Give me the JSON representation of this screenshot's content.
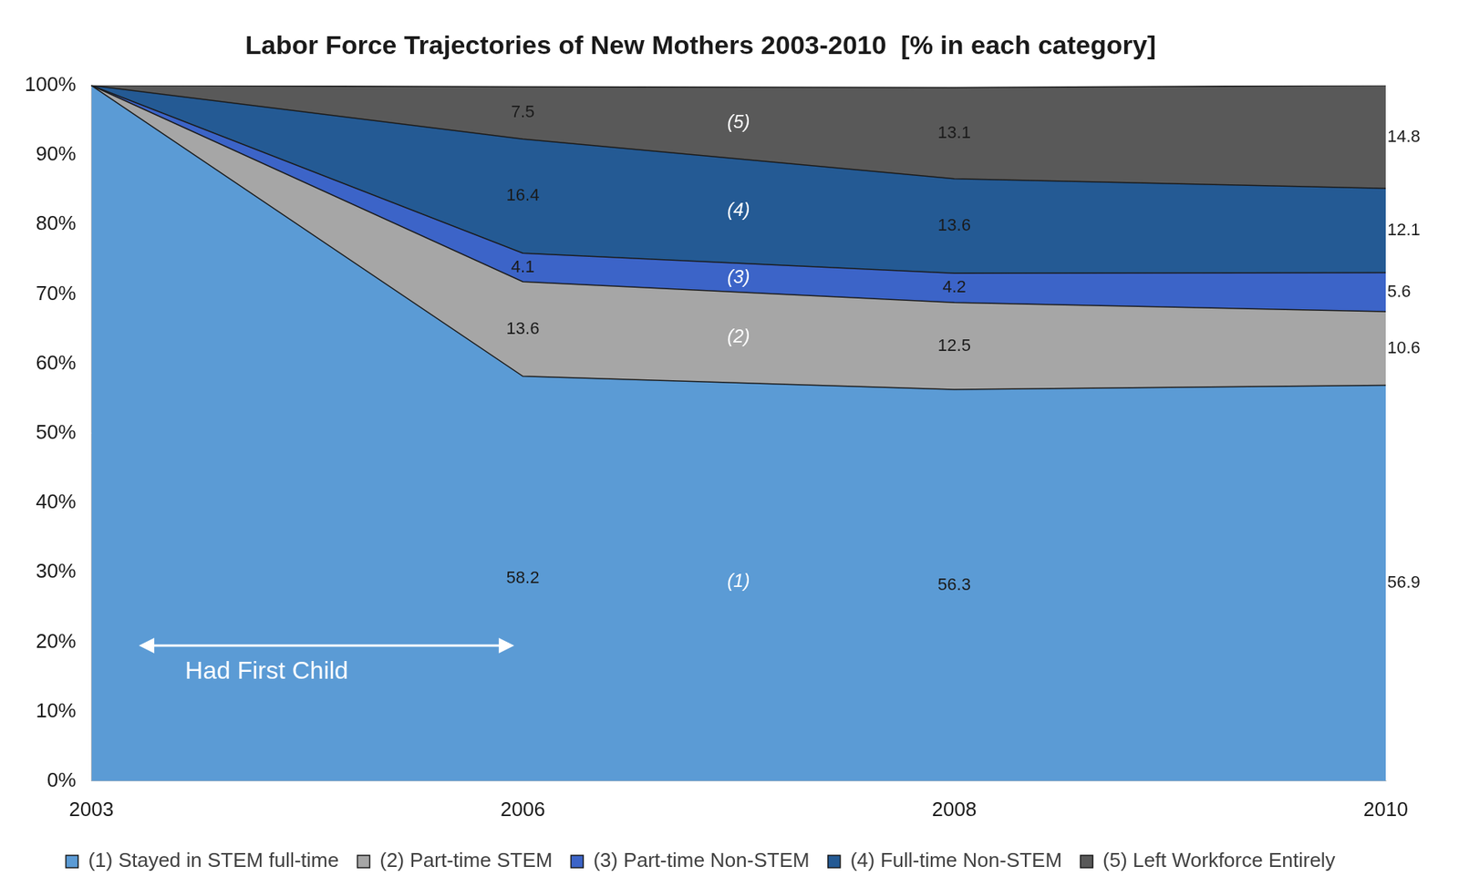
{
  "chart_data": {
    "type": "area",
    "title": "Labor Force Trajectories of New Mothers 2003-2010  [% in each category]",
    "categories": [
      "2003",
      "2006",
      "2008",
      "2010"
    ],
    "series": [
      {
        "name": "(1) Stayed in STEM full-time",
        "tag": "(1)",
        "color": "#5b9bd5",
        "values": [
          100,
          58.2,
          56.3,
          56.9
        ],
        "value_labels": [
          null,
          "58.2",
          "56.3",
          "56.9"
        ]
      },
      {
        "name": "(2) Part-time STEM",
        "tag": "(2)",
        "color": "#a6a6a6",
        "values": [
          0,
          13.6,
          12.5,
          10.6
        ],
        "value_labels": [
          null,
          "13.6",
          "12.5",
          "10.6"
        ]
      },
      {
        "name": "(3) Part-time Non-STEM",
        "tag": "(3)",
        "color": "#3c64c8",
        "values": [
          0,
          4.1,
          4.2,
          5.6
        ],
        "value_labels": [
          null,
          "4.1",
          "4.2",
          "5.6"
        ]
      },
      {
        "name": "(4) Full-time Non-STEM",
        "tag": "(4)",
        "color": "#245a94",
        "values": [
          0,
          16.4,
          13.6,
          12.1
        ],
        "value_labels": [
          null,
          "16.4",
          "13.6",
          "12.1"
        ]
      },
      {
        "name": "(5) Left Workforce Entirely",
        "tag": "(5)",
        "color": "#595959",
        "values": [
          0,
          7.5,
          13.1,
          14.8
        ],
        "value_labels": [
          null,
          "7.5",
          "13.1",
          "14.8"
        ]
      }
    ],
    "ylim": [
      0,
      100
    ],
    "yticks": [
      {
        "value": 0,
        "label": "0%"
      },
      {
        "value": 10,
        "label": "10%"
      },
      {
        "value": 20,
        "label": "20%"
      },
      {
        "value": 30,
        "label": "30%"
      },
      {
        "value": 40,
        "label": "40%"
      },
      {
        "value": 50,
        "label": "50%"
      },
      {
        "value": 60,
        "label": "60%"
      },
      {
        "value": 70,
        "label": "70%"
      },
      {
        "value": 80,
        "label": "80%"
      },
      {
        "value": 90,
        "label": "90%"
      },
      {
        "value": 100,
        "label": "100%"
      }
    ],
    "stacked": true,
    "grid": false,
    "legend": "bottom",
    "data_labels": true,
    "annotations": [
      {
        "text": "Had First Child",
        "from": "2003",
        "to": "2006"
      }
    ]
  }
}
